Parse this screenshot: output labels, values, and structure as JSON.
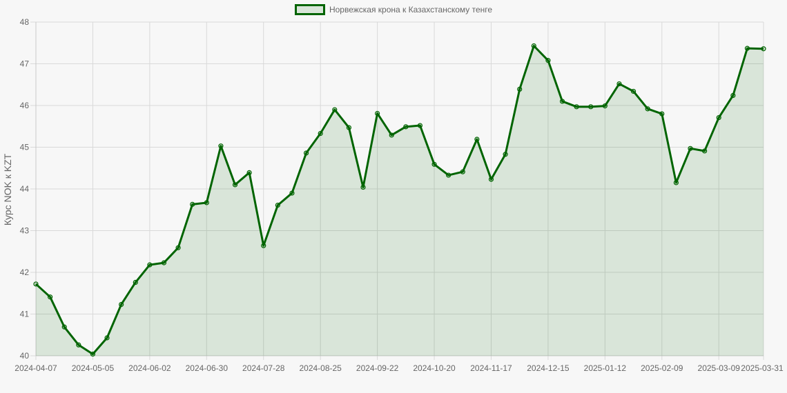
{
  "chart_data": {
    "type": "area",
    "legend": "top",
    "grid": true,
    "ylabel": "Курс NOK к KZT",
    "ylim": [
      40,
      48
    ],
    "yticks": [
      "40",
      "41",
      "42",
      "43",
      "44",
      "45",
      "46",
      "47",
      "48"
    ],
    "xticks": [
      "2024-04-07",
      "2024-05-05",
      "2024-06-02",
      "2024-06-30",
      "2024-07-28",
      "2024-08-25",
      "2024-09-22",
      "2024-10-20",
      "2024-11-17",
      "2024-12-15",
      "2025-01-12",
      "2025-02-09",
      "2025-03-09",
      "2025-03-31"
    ],
    "colors": {
      "line": "#006400",
      "fill": "#006400"
    },
    "series": [
      {
        "name": "Норвежская крона к Казахстанскому тенге",
        "x": [
          "2024-04-07",
          "2024-04-14",
          "2024-04-21",
          "2024-04-28",
          "2024-05-05",
          "2024-05-12",
          "2024-05-19",
          "2024-05-26",
          "2024-06-02",
          "2024-06-09",
          "2024-06-16",
          "2024-06-23",
          "2024-06-30",
          "2024-07-07",
          "2024-07-14",
          "2024-07-21",
          "2024-07-28",
          "2024-08-04",
          "2024-08-11",
          "2024-08-18",
          "2024-08-25",
          "2024-09-01",
          "2024-09-08",
          "2024-09-15",
          "2024-09-22",
          "2024-09-29",
          "2024-10-06",
          "2024-10-13",
          "2024-10-20",
          "2024-10-27",
          "2024-11-03",
          "2024-11-10",
          "2024-11-17",
          "2024-11-24",
          "2024-12-01",
          "2024-12-08",
          "2024-12-15",
          "2024-12-22",
          "2024-12-29",
          "2025-01-05",
          "2025-01-12",
          "2025-01-19",
          "2025-01-26",
          "2025-02-02",
          "2025-02-09",
          "2025-02-16",
          "2025-02-23",
          "2025-03-02",
          "2025-03-09",
          "2025-03-16",
          "2025-03-23",
          "2025-03-31"
        ],
        "values": [
          41.72,
          41.41,
          40.69,
          40.26,
          40.04,
          40.43,
          41.23,
          41.76,
          42.18,
          42.23,
          42.59,
          43.63,
          43.67,
          45.03,
          44.1,
          44.39,
          42.64,
          43.61,
          43.9,
          44.86,
          45.33,
          45.9,
          45.47,
          44.04,
          45.81,
          45.29,
          45.49,
          45.52,
          44.59,
          44.33,
          44.41,
          45.19,
          44.23,
          44.83,
          46.39,
          47.43,
          47.08,
          46.1,
          45.97,
          45.97,
          45.99,
          46.52,
          46.34,
          45.92,
          45.8,
          44.15,
          44.97,
          44.91,
          45.71,
          46.24,
          47.37,
          47.36
        ]
      }
    ]
  }
}
